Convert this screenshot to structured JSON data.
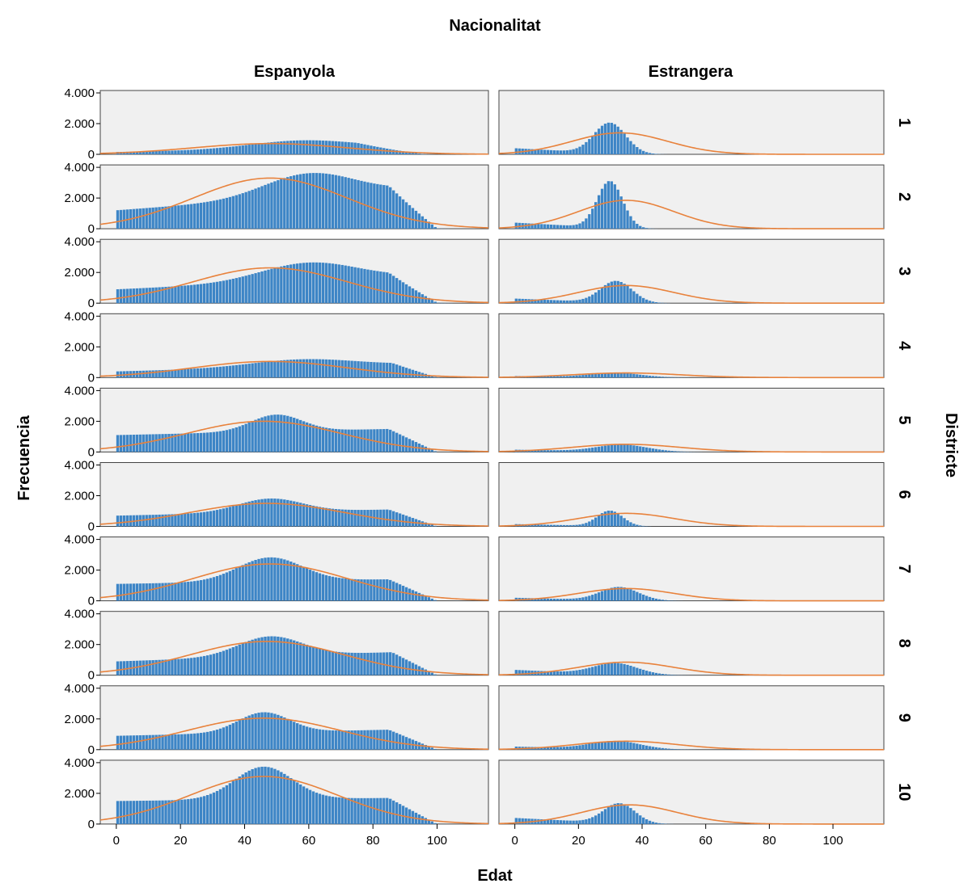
{
  "chart_data": {
    "type": "histogram-panel-grid",
    "title": "Nacionalitat",
    "xlabel": "Edat",
    "ylabel": "Frecuencia",
    "row_variable": "Districte",
    "column_labels": [
      "Espanyola",
      "Estrangera"
    ],
    "row_labels": [
      "1",
      "2",
      "3",
      "4",
      "5",
      "6",
      "7",
      "8",
      "9",
      "10"
    ],
    "xlim": [
      -5,
      116
    ],
    "ylim": [
      0,
      4000
    ],
    "x_ticks": [
      0,
      20,
      40,
      60,
      80,
      100
    ],
    "x_tick_labels": [
      "0",
      "20",
      "40",
      "60",
      "80",
      "100"
    ],
    "y_ticks": [
      0,
      2000,
      4000
    ],
    "y_tick_labels": [
      "0",
      "2.000",
      "4.000"
    ],
    "bar_color": "#3d85c6",
    "curve_color": "#e8823c",
    "panel_background": "#f0f0f0",
    "normal_curves": [
      [
        {
          "peak": 700,
          "mean": 48,
          "sd": 24
        },
        {
          "peak": 1400,
          "mean": 33,
          "sd": 15
        }
      ],
      [
        {
          "peak": 3300,
          "mean": 48,
          "sd": 24
        },
        {
          "peak": 1850,
          "mean": 35,
          "sd": 15
        }
      ],
      [
        {
          "peak": 2300,
          "mean": 48,
          "sd": 24
        },
        {
          "peak": 1150,
          "mean": 35,
          "sd": 15
        }
      ],
      [
        {
          "peak": 1050,
          "mean": 48,
          "sd": 24
        },
        {
          "peak": 300,
          "mean": 35,
          "sd": 17
        }
      ],
      [
        {
          "peak": 2000,
          "mean": 46,
          "sd": 24
        },
        {
          "peak": 500,
          "mean": 35,
          "sd": 17
        }
      ],
      [
        {
          "peak": 1500,
          "mean": 47,
          "sd": 24
        },
        {
          "peak": 850,
          "mean": 35,
          "sd": 15
        }
      ],
      [
        {
          "peak": 2400,
          "mean": 48,
          "sd": 24
        },
        {
          "peak": 800,
          "mean": 35,
          "sd": 15
        }
      ],
      [
        {
          "peak": 2200,
          "mean": 47,
          "sd": 24
        },
        {
          "peak": 850,
          "mean": 35,
          "sd": 15
        }
      ],
      [
        {
          "peak": 2050,
          "mean": 46,
          "sd": 24
        },
        {
          "peak": 550,
          "mean": 35,
          "sd": 16
        }
      ],
      [
        {
          "peak": 3100,
          "mean": 46,
          "sd": 23
        },
        {
          "peak": 1250,
          "mean": 36,
          "sd": 15
        }
      ]
    ],
    "histogram_profiles": [
      [
        {
          "start": 150,
          "end": 450,
          "hump_peak": 800,
          "hump_at": 58,
          "hump_width": 16,
          "tail_start": 75,
          "tail_end": 95
        },
        {
          "start": 400,
          "end": 0,
          "hump_peak": 2250,
          "hump_at": 30,
          "hump_width": 5,
          "tail_start": 35,
          "tail_end": 80
        }
      ],
      [
        {
          "start": 1200,
          "end": 2500,
          "hump_peak": 3000,
          "hump_at": 60,
          "hump_width": 14,
          "tail_start": 85,
          "tail_end": 100
        },
        {
          "start": 400,
          "end": 0,
          "hump_peak": 3300,
          "hump_at": 30,
          "hump_width": 4,
          "tail_start": 35,
          "tail_end": 80
        }
      ],
      [
        {
          "start": 900,
          "end": 1700,
          "hump_peak": 2200,
          "hump_at": 60,
          "hump_width": 15,
          "tail_start": 85,
          "tail_end": 100
        },
        {
          "start": 300,
          "end": 0,
          "hump_peak": 1600,
          "hump_at": 32,
          "hump_width": 5,
          "tail_start": 36,
          "tail_end": 80
        }
      ],
      [
        {
          "start": 400,
          "end": 850,
          "hump_peak": 1000,
          "hump_at": 58,
          "hump_width": 16,
          "tail_start": 86,
          "tail_end": 100
        },
        {
          "start": 100,
          "end": 0,
          "hump_peak": 350,
          "hump_at": 32,
          "hump_width": 8,
          "tail_start": 40,
          "tail_end": 80
        }
      ],
      [
        {
          "start": 1100,
          "end": 1500,
          "hump_peak": 2000,
          "hump_at": 50,
          "hump_width": 8,
          "tail_start": 85,
          "tail_end": 100
        },
        {
          "start": 150,
          "end": 0,
          "hump_peak": 550,
          "hump_at": 34,
          "hump_width": 8,
          "tail_start": 40,
          "tail_end": 85
        }
      ],
      [
        {
          "start": 700,
          "end": 1100,
          "hump_peak": 1550,
          "hump_at": 48,
          "hump_width": 10,
          "tail_start": 85,
          "tail_end": 100
        },
        {
          "start": 150,
          "end": 0,
          "hump_peak": 1100,
          "hump_at": 30,
          "hump_width": 4,
          "tail_start": 35,
          "tail_end": 80
        }
      ],
      [
        {
          "start": 1100,
          "end": 1400,
          "hump_peak": 2400,
          "hump_at": 48,
          "hump_width": 10,
          "tail_start": 85,
          "tail_end": 100
        },
        {
          "start": 200,
          "end": 0,
          "hump_peak": 1000,
          "hump_at": 33,
          "hump_width": 6,
          "tail_start": 38,
          "tail_end": 80
        }
      ],
      [
        {
          "start": 900,
          "end": 1500,
          "hump_peak": 2200,
          "hump_at": 48,
          "hump_width": 10,
          "tail_start": 86,
          "tail_end": 100
        },
        {
          "start": 350,
          "end": 0,
          "hump_peak": 950,
          "hump_at": 32,
          "hump_width": 7,
          "tail_start": 38,
          "tail_end": 85
        }
      ],
      [
        {
          "start": 900,
          "end": 1300,
          "hump_peak": 2100,
          "hump_at": 46,
          "hump_width": 8,
          "tail_start": 85,
          "tail_end": 100
        },
        {
          "start": 200,
          "end": 0,
          "hump_peak": 650,
          "hump_at": 32,
          "hump_width": 8,
          "tail_start": 40,
          "tail_end": 85
        }
      ],
      [
        {
          "start": 1500,
          "end": 1700,
          "hump_peak": 3150,
          "hump_at": 46,
          "hump_width": 9,
          "tail_start": 85,
          "tail_end": 100
        },
        {
          "start": 400,
          "end": 0,
          "hump_peak": 1550,
          "hump_at": 33,
          "hump_width": 5,
          "tail_start": 38,
          "tail_end": 80
        }
      ]
    ]
  }
}
